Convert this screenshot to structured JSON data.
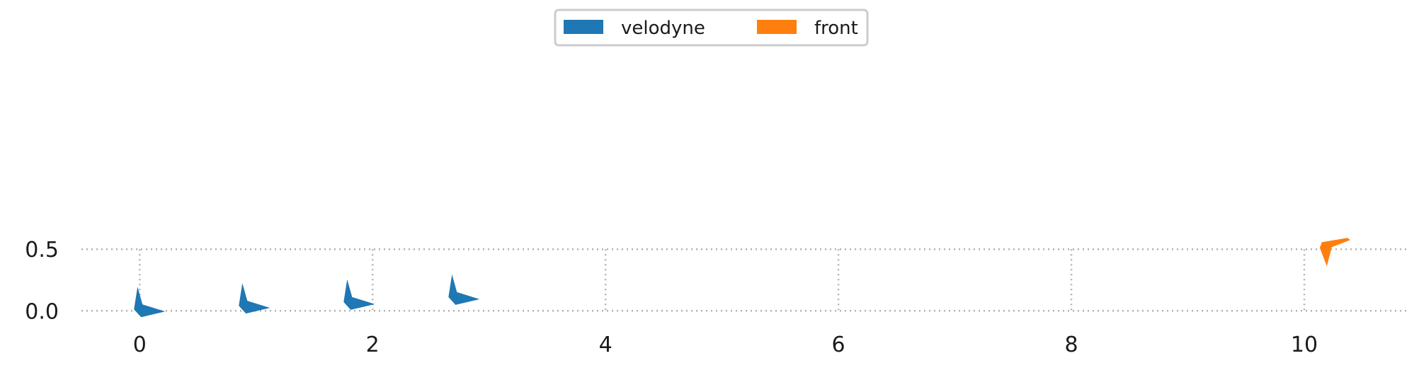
{
  "chart_data": {
    "type": "scatter",
    "title": "",
    "xlabel": "",
    "ylabel": "",
    "xlim": [
      -0.5,
      10.9
    ],
    "ylim": [
      -0.05,
      0.57
    ],
    "xticks": [
      0,
      2,
      4,
      6,
      8,
      10
    ],
    "xtick_labels": [
      "0",
      "2",
      "4",
      "6",
      "8",
      "10"
    ],
    "yticks": [
      0.0,
      0.5
    ],
    "ytick_labels": [
      "0.0",
      "0.5"
    ],
    "grid": "dotted",
    "legend": {
      "placement": "top-center",
      "ncol": 2
    },
    "series": [
      {
        "name": "velodyne",
        "color": "#1f77b4",
        "marker": "pose-arrow",
        "x": [
          0.0,
          0.9,
          1.8,
          2.7
        ],
        "y": [
          0.0,
          0.03,
          0.06,
          0.1
        ]
      },
      {
        "name": "front",
        "color": "#ff7f0e",
        "marker": "pose-arrow-down",
        "x": [
          10.2
        ],
        "y": [
          0.5
        ]
      }
    ]
  }
}
